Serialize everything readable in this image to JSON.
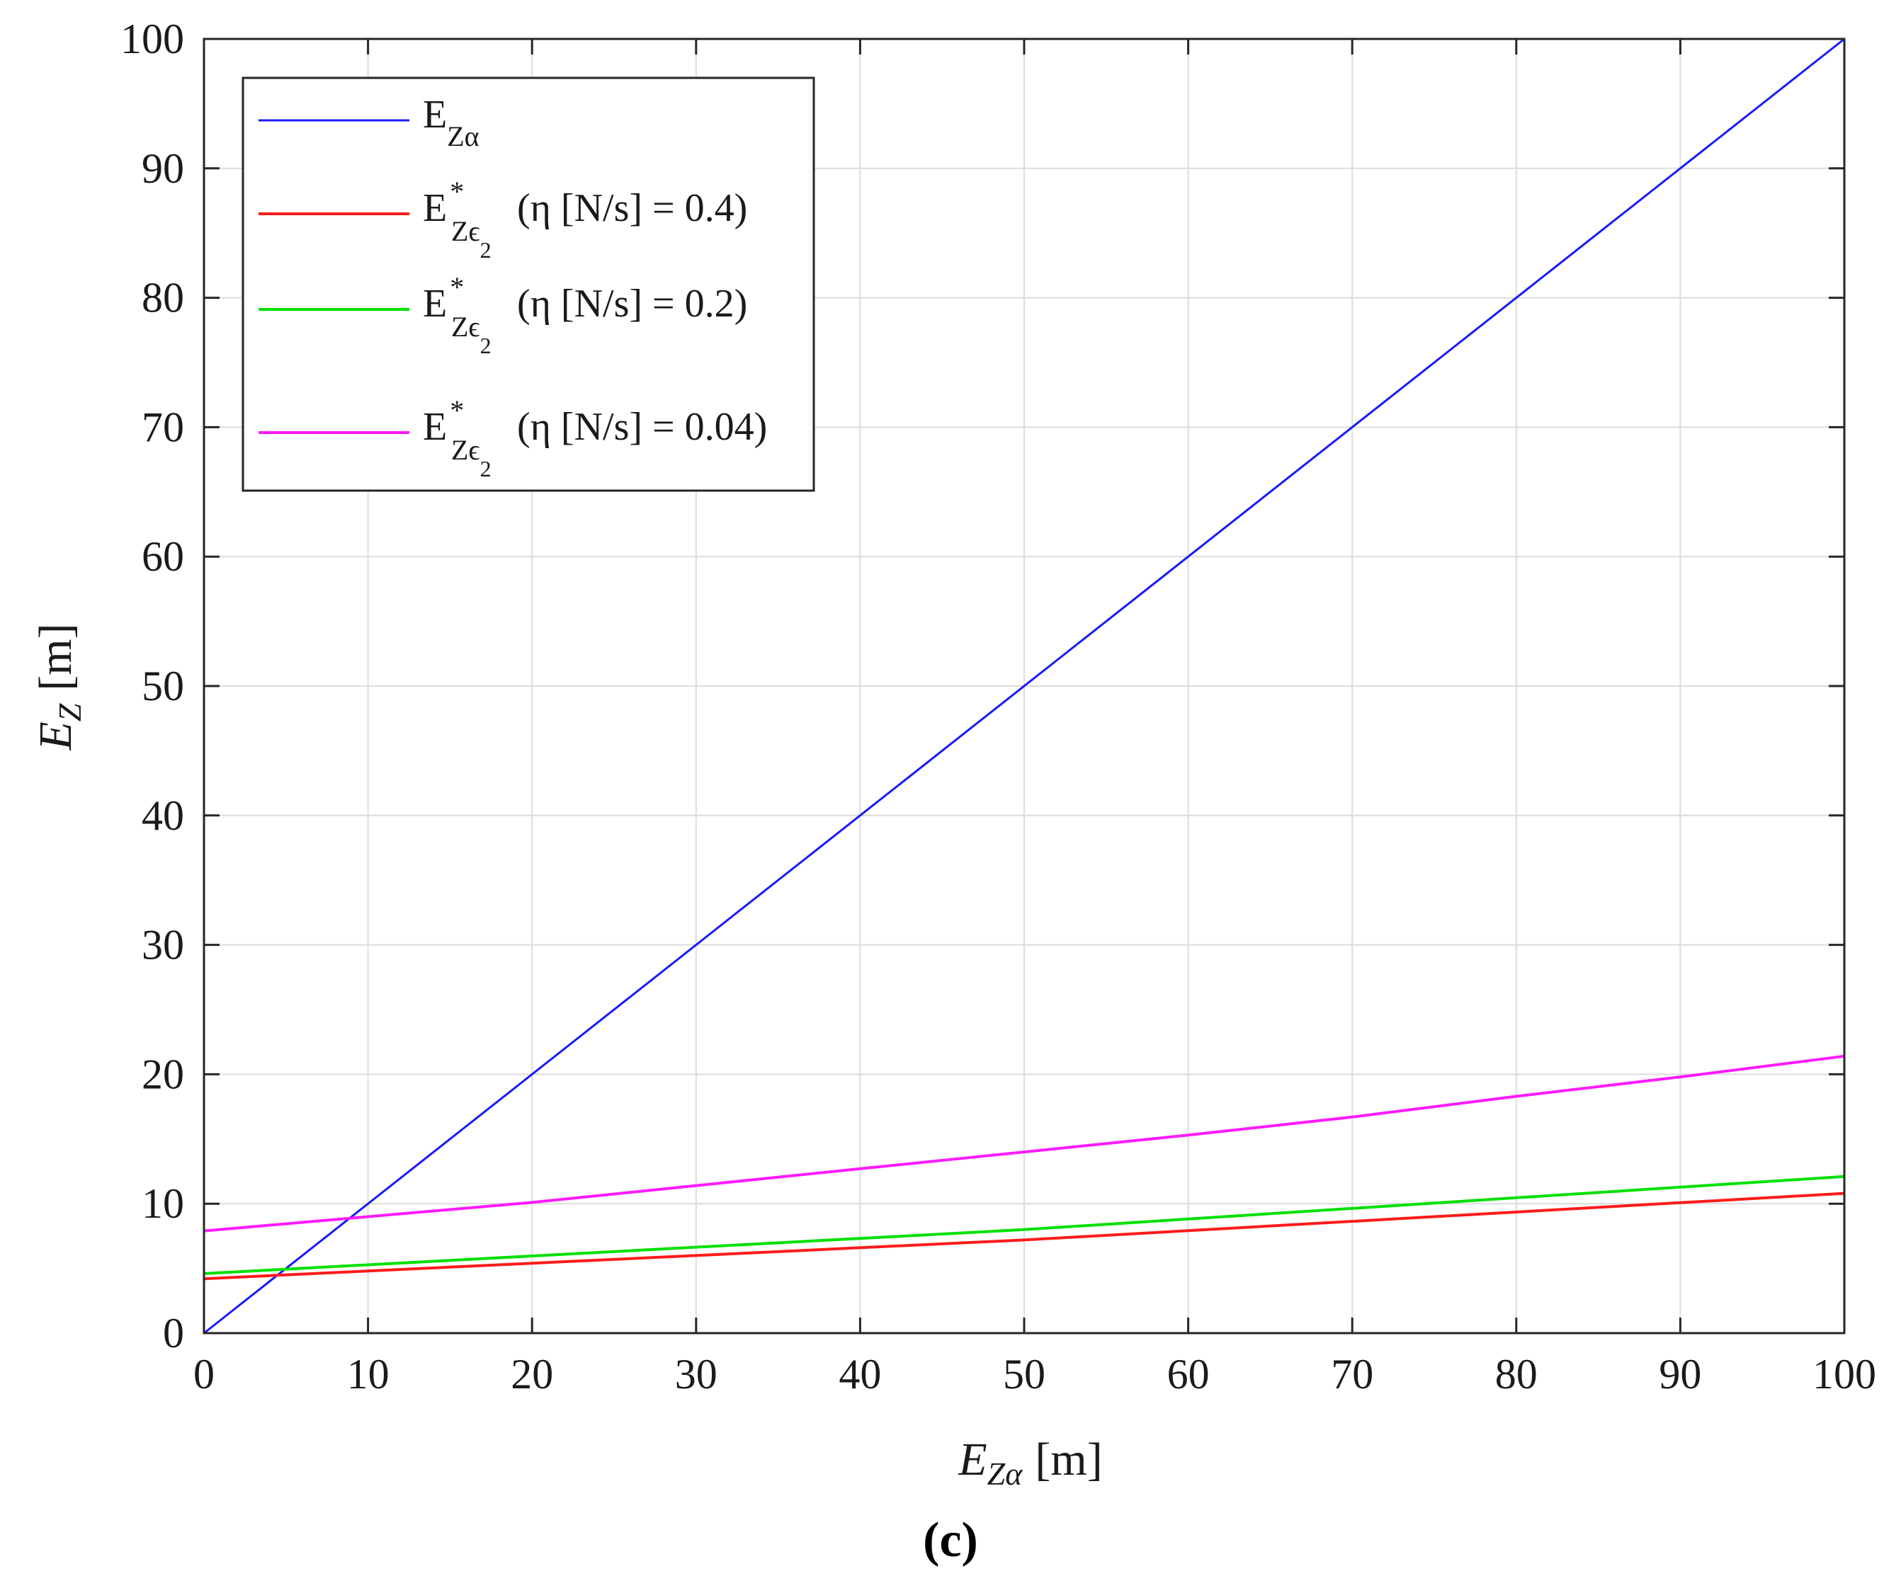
{
  "chart_data": {
    "type": "line",
    "caption": "(c)",
    "xlabel": {
      "var": "E",
      "sub": "Zα",
      "unit": "[m]"
    },
    "ylabel": {
      "var": "E",
      "sub": "Z",
      "unit": "[m]"
    },
    "xlim": [
      0,
      100
    ],
    "ylim": [
      0,
      100
    ],
    "xticks": [
      0,
      10,
      20,
      30,
      40,
      50,
      60,
      70,
      80,
      90,
      100
    ],
    "yticks": [
      0,
      10,
      20,
      30,
      40,
      50,
      60,
      70,
      80,
      90,
      100
    ],
    "grid": true,
    "legend_position": "top-left",
    "series": [
      {
        "legend": {
          "base": "E",
          "sub": "Zα",
          "sup": "",
          "cond": ""
        },
        "color": "#1a1aff",
        "x": [
          0,
          100
        ],
        "y": [
          0,
          100
        ]
      },
      {
        "legend": {
          "base": "E",
          "sub": "Zϵ",
          "subsub": "2",
          "sup": "*",
          "cond": "(η [N/s] = 0.4)"
        },
        "color": "#ff1a1a",
        "x": [
          0,
          50,
          100
        ],
        "y": [
          4.2,
          7.2,
          10.8
        ]
      },
      {
        "legend": {
          "base": "E",
          "sub": "Zϵ",
          "subsub": "2",
          "sup": "*",
          "cond": "(η [N/s] = 0.2)"
        },
        "color": "#00e000",
        "x": [
          0,
          50,
          100
        ],
        "y": [
          4.6,
          8.0,
          12.1
        ]
      },
      {
        "legend": {
          "base": "E",
          "sub": "Zϵ",
          "subsub": "2",
          "sup": "*",
          "cond": "(η [N/s] = 0.04)"
        },
        "color": "#ff1aff",
        "x": [
          0,
          10,
          20,
          30,
          40,
          50,
          60,
          70,
          80,
          90,
          100
        ],
        "y": [
          7.9,
          9.0,
          10.1,
          11.4,
          12.7,
          14.0,
          15.3,
          16.7,
          18.3,
          19.8,
          21.4
        ]
      }
    ]
  }
}
